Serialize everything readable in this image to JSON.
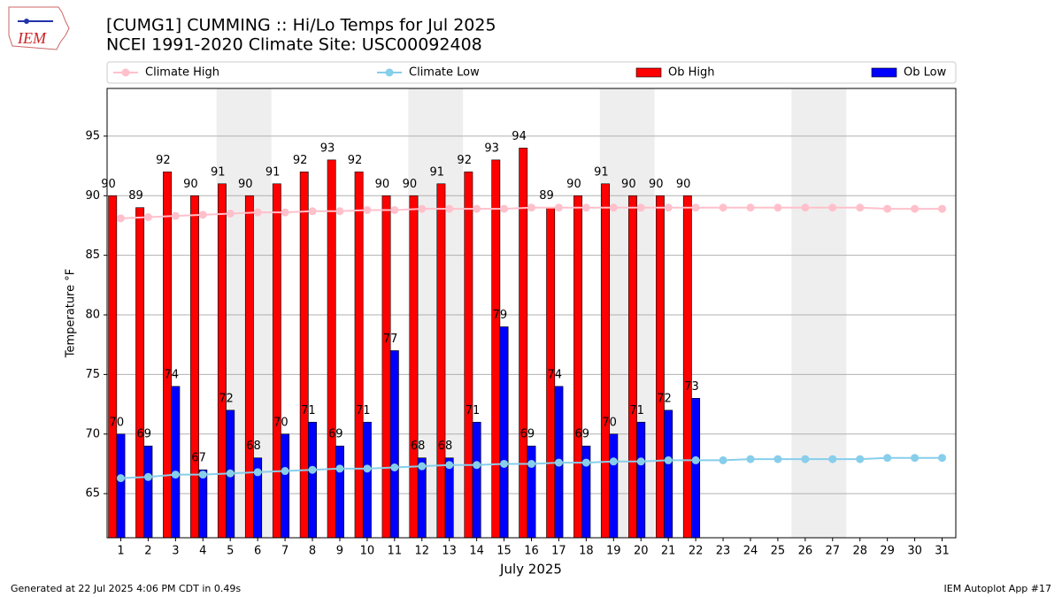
{
  "chart_data": {
    "type": "bar",
    "logo_text": "IEM",
    "title": "[CUMG1] CUMMING :: Hi/Lo Temps for Jul 2025",
    "subtitle": "NCEI 1991-2020 Climate Site: USC00092408",
    "y_label": "Temperature °F",
    "x_label": "July 2025",
    "footer_left": "Generated at 22 Jul 2025 4:06 PM CDT in 0.49s",
    "footer_right": "IEM Autoplot App #17",
    "x": [
      1,
      2,
      3,
      4,
      5,
      6,
      7,
      8,
      9,
      10,
      11,
      12,
      13,
      14,
      15,
      16,
      17,
      18,
      19,
      20,
      21,
      22,
      23,
      24,
      25,
      26,
      27,
      28,
      29,
      30,
      31
    ],
    "xlim": [
      0.5,
      31.5
    ],
    "xticks": [
      1,
      2,
      3,
      4,
      5,
      6,
      7,
      8,
      9,
      10,
      11,
      12,
      13,
      14,
      15,
      16,
      17,
      18,
      19,
      20,
      21,
      22,
      23,
      24,
      25,
      26,
      27,
      28,
      29,
      30,
      31
    ],
    "ylim": [
      61.3,
      99
    ],
    "yticks": [
      65,
      70,
      75,
      80,
      85,
      90,
      95
    ],
    "grid": true,
    "shaded_spans": [
      [
        4.5,
        6.5
      ],
      [
        11.5,
        13.5
      ],
      [
        18.5,
        20.5
      ],
      [
        25.5,
        27.5
      ]
    ],
    "series": [
      {
        "name": "Climate High",
        "type": "line",
        "color": "#ffc0cb",
        "values": [
          88.1,
          88.2,
          88.3,
          88.4,
          88.5,
          88.6,
          88.6,
          88.7,
          88.7,
          88.8,
          88.8,
          88.9,
          88.9,
          88.9,
          88.9,
          89.0,
          89.0,
          89.0,
          89.0,
          89.0,
          89.0,
          89.0,
          89.0,
          89.0,
          89.0,
          89.0,
          89.0,
          89.0,
          88.9,
          88.9,
          88.9
        ]
      },
      {
        "name": "Climate Low",
        "type": "line",
        "color": "#87ceeb",
        "values": [
          66.3,
          66.4,
          66.6,
          66.6,
          66.7,
          66.8,
          66.9,
          67.0,
          67.1,
          67.1,
          67.2,
          67.3,
          67.4,
          67.4,
          67.5,
          67.5,
          67.6,
          67.6,
          67.7,
          67.7,
          67.8,
          67.8,
          67.8,
          67.9,
          67.9,
          67.9,
          67.9,
          67.9,
          68.0,
          68.0,
          68.0
        ]
      },
      {
        "name": "Ob High",
        "type": "bar",
        "color": "#ff0000",
        "values": [
          90,
          89,
          92,
          90,
          91,
          90,
          91,
          92,
          93,
          92,
          90,
          90,
          91,
          92,
          93,
          94,
          89,
          90,
          91,
          90,
          90,
          90,
          null,
          null,
          null,
          null,
          null,
          null,
          null,
          null,
          null
        ]
      },
      {
        "name": "Ob Low",
        "type": "bar",
        "color": "#0000ff",
        "values": [
          70,
          69,
          74,
          67,
          72,
          68,
          70,
          71,
          69,
          71,
          77,
          68,
          68,
          71,
          79,
          69,
          74,
          69,
          70,
          71,
          72,
          73,
          null,
          null,
          null,
          null,
          null,
          null,
          null,
          null,
          null
        ]
      }
    ]
  }
}
